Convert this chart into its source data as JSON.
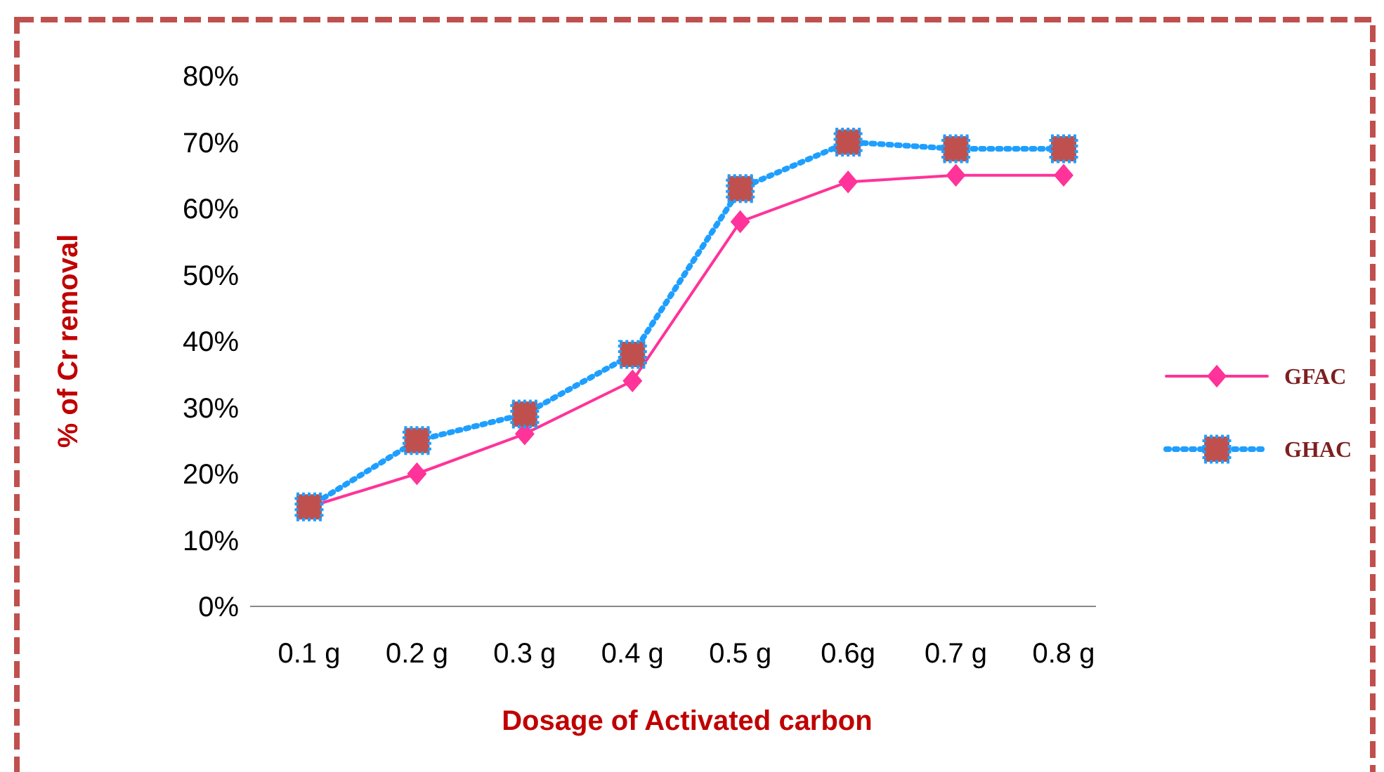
{
  "chart_data": {
    "type": "line",
    "xlabel": "Dosage of Activated carbon",
    "ylabel": "% of Cr removal",
    "categories": [
      "0.1 g",
      "0.2 g",
      "0.3 g",
      "0.4 g",
      "0.5 g",
      "0.6g",
      "0.7 g",
      "0.8 g"
    ],
    "series": [
      {
        "name": "GFAC",
        "color": "#ff3399",
        "marker": "diamond",
        "line_style": "solid",
        "values": [
          15,
          20,
          26,
          34,
          58,
          64,
          65,
          65
        ]
      },
      {
        "name": "GHAC",
        "color": "#1e9fff",
        "marker": "square",
        "line_style": "dotted",
        "values": [
          15,
          25,
          29,
          38,
          63,
          70,
          69,
          69
        ]
      }
    ],
    "ylim": [
      0,
      80
    ],
    "yticks": [
      {
        "value": 0,
        "label": "0%"
      },
      {
        "value": 10,
        "label": "10%"
      },
      {
        "value": 20,
        "label": "20%"
      },
      {
        "value": 30,
        "label": "30%"
      },
      {
        "value": 40,
        "label": "40%"
      },
      {
        "value": 50,
        "label": "50%"
      },
      {
        "value": 60,
        "label": "60%"
      },
      {
        "value": 70,
        "label": "70%"
      },
      {
        "value": 80,
        "label": "80%"
      }
    ],
    "grid": false,
    "legend": "right"
  }
}
